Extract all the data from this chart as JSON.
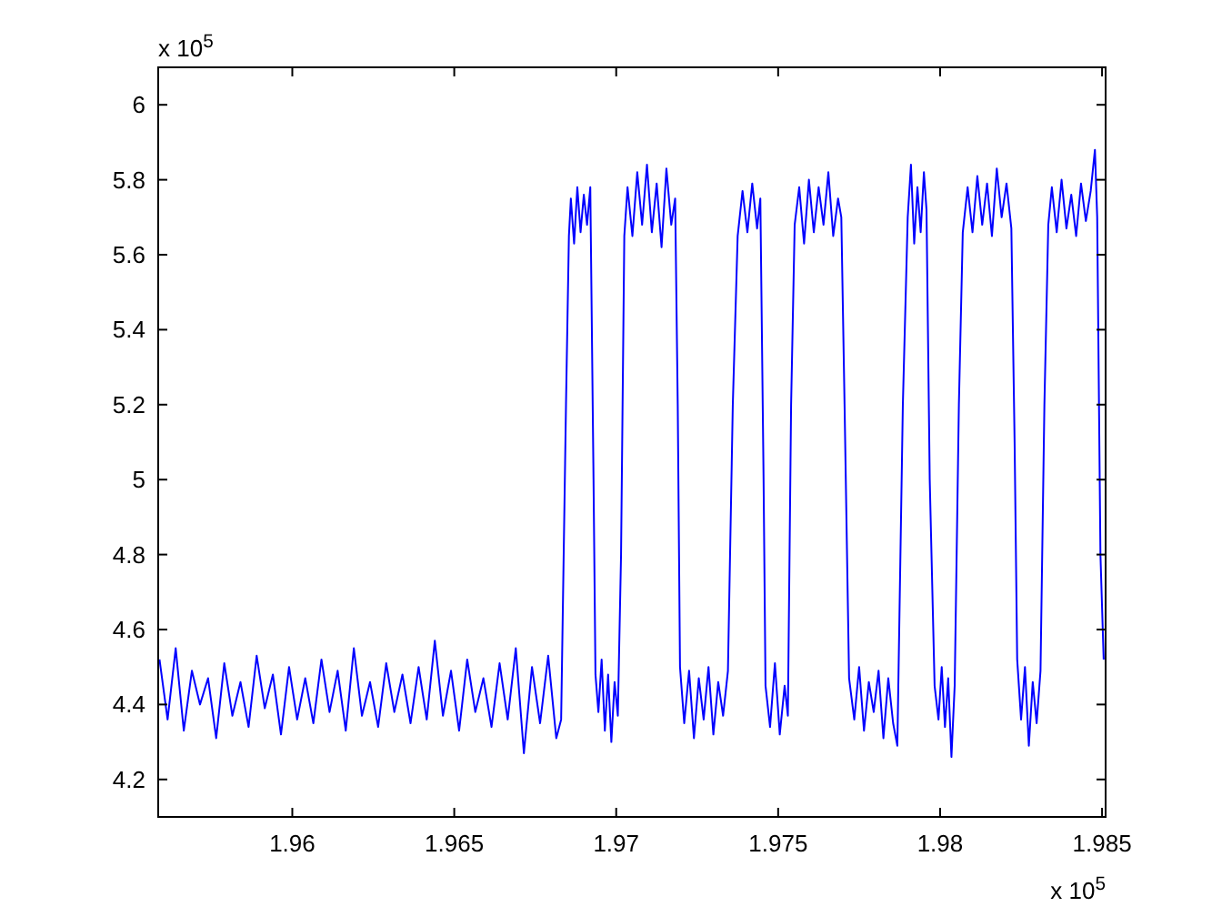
{
  "chart_data": {
    "type": "line",
    "xlim": [
      1.95586,
      1.98511
    ],
    "ylim": [
      4.1,
      6.1
    ],
    "xticks": [
      1.96,
      1.965,
      1.97,
      1.975,
      1.98,
      1.985
    ],
    "yticks": [
      4.2,
      4.4,
      4.6,
      4.8,
      5,
      5.2,
      5.4,
      5.6,
      5.8,
      6
    ],
    "annotations": [
      "x 10$^{5}$",
      "x 10$^{5}$"
    ],
    "series": [
      {
        "color": "#0000ff",
        "x": [
          1.9559,
          1.95615,
          1.9564,
          1.95665,
          1.9569,
          1.95715,
          1.9574,
          1.95765,
          1.9579,
          1.95815,
          1.9584,
          1.95865,
          1.9589,
          1.95915,
          1.9594,
          1.95965,
          1.9599,
          1.96015,
          1.9604,
          1.96065,
          1.9609,
          1.96115,
          1.9614,
          1.96165,
          1.9619,
          1.96215,
          1.9624,
          1.96265,
          1.9629,
          1.96315,
          1.9634,
          1.96365,
          1.9639,
          1.96415,
          1.9644,
          1.96465,
          1.9649,
          1.96515,
          1.9654,
          1.96565,
          1.9659,
          1.96615,
          1.9664,
          1.96665,
          1.9669,
          1.96715,
          1.9674,
          1.96765,
          1.9679,
          1.96815,
          1.9683,
          1.96845,
          1.96854,
          1.9686,
          1.9687,
          1.9688,
          1.9689,
          1.969,
          1.9691,
          1.9692,
          1.9693,
          1.96936,
          1.96945,
          1.96955,
          1.96965,
          1.96975,
          1.96985,
          1.96995,
          1.97005,
          1.97015,
          1.97025,
          1.97035,
          1.9705,
          1.97065,
          1.9708,
          1.97095,
          1.9711,
          1.97125,
          1.9714,
          1.97155,
          1.9717,
          1.97182,
          1.9719,
          1.97197,
          1.9721,
          1.97225,
          1.9724,
          1.97255,
          1.9727,
          1.97285,
          1.973,
          1.97315,
          1.9733,
          1.97345,
          1.9736,
          1.97375,
          1.9739,
          1.97405,
          1.9742,
          1.97435,
          1.97445,
          1.97455,
          1.97461,
          1.97475,
          1.9749,
          1.97505,
          1.9752,
          1.9753,
          1.9754,
          1.97551,
          1.97565,
          1.9758,
          1.97595,
          1.9761,
          1.97625,
          1.9764,
          1.97655,
          1.9767,
          1.97685,
          1.97695,
          1.97705,
          1.97719,
          1.97735,
          1.9775,
          1.97765,
          1.9778,
          1.97795,
          1.9781,
          1.97825,
          1.9784,
          1.97855,
          1.97868,
          1.97885,
          1.979,
          1.9791,
          1.9792,
          1.9793,
          1.9794,
          1.9795,
          1.97958,
          1.97968,
          1.97983,
          1.97995,
          1.98005,
          1.98015,
          1.98025,
          1.98035,
          1.98045,
          1.98058,
          1.9807,
          1.98085,
          1.981,
          1.98115,
          1.9813,
          1.98145,
          1.9816,
          1.98175,
          1.9819,
          1.98205,
          1.9822,
          1.9823,
          1.98238,
          1.9825,
          1.98262,
          1.98274,
          1.98286,
          1.98298,
          1.9831,
          1.98322,
          1.98334,
          1.98345,
          1.9836,
          1.98375,
          1.9839,
          1.98405,
          1.9842,
          1.98435,
          1.9845,
          1.98465,
          1.98478,
          1.98485,
          1.98495,
          1.98505
        ],
        "values": [
          4.52,
          4.36,
          4.55,
          4.33,
          4.49,
          4.4,
          4.47,
          4.31,
          4.51,
          4.37,
          4.46,
          4.34,
          4.53,
          4.39,
          4.48,
          4.32,
          4.5,
          4.36,
          4.47,
          4.35,
          4.52,
          4.38,
          4.49,
          4.33,
          4.55,
          4.37,
          4.46,
          4.34,
          4.51,
          4.38,
          4.48,
          4.35,
          4.5,
          4.36,
          4.57,
          4.37,
          4.49,
          4.33,
          4.52,
          4.38,
          4.47,
          4.34,
          4.51,
          4.36,
          4.55,
          4.27,
          4.5,
          4.35,
          4.53,
          4.31,
          4.36,
          5.2,
          5.65,
          5.75,
          5.63,
          5.78,
          5.66,
          5.76,
          5.68,
          5.78,
          5,
          4.48,
          4.38,
          4.52,
          4.33,
          4.48,
          4.3,
          4.46,
          4.37,
          4.8,
          5.65,
          5.78,
          5.65,
          5.82,
          5.68,
          5.84,
          5.66,
          5.79,
          5.62,
          5.83,
          5.68,
          5.75,
          5.2,
          4.5,
          4.35,
          4.49,
          4.31,
          4.47,
          4.36,
          4.5,
          4.32,
          4.46,
          4.37,
          4.49,
          5.2,
          5.65,
          5.77,
          5.66,
          5.79,
          5.67,
          5.75,
          5,
          4.45,
          4.34,
          4.51,
          4.32,
          4.45,
          4.37,
          5.2,
          5.68,
          5.78,
          5.63,
          5.8,
          5.66,
          5.78,
          5.68,
          5.82,
          5.65,
          5.75,
          5.7,
          5.2,
          4.47,
          4.36,
          4.5,
          4.33,
          4.46,
          4.38,
          4.49,
          4.31,
          4.47,
          4.35,
          4.29,
          5.2,
          5.7,
          5.84,
          5.63,
          5.78,
          5.66,
          5.82,
          5.72,
          5,
          4.45,
          4.36,
          4.5,
          4.34,
          4.47,
          4.26,
          4.45,
          5.2,
          5.66,
          5.78,
          5.66,
          5.81,
          5.68,
          5.79,
          5.65,
          5.83,
          5.7,
          5.79,
          5.67,
          5.1,
          4.52,
          4.36,
          4.5,
          4.29,
          4.46,
          4.35,
          4.49,
          5.2,
          5.68,
          5.78,
          5.66,
          5.8,
          5.67,
          5.76,
          5.65,
          5.79,
          5.69,
          5.77,
          5.88,
          5.7,
          4.8,
          4.52
        ]
      }
    ]
  }
}
